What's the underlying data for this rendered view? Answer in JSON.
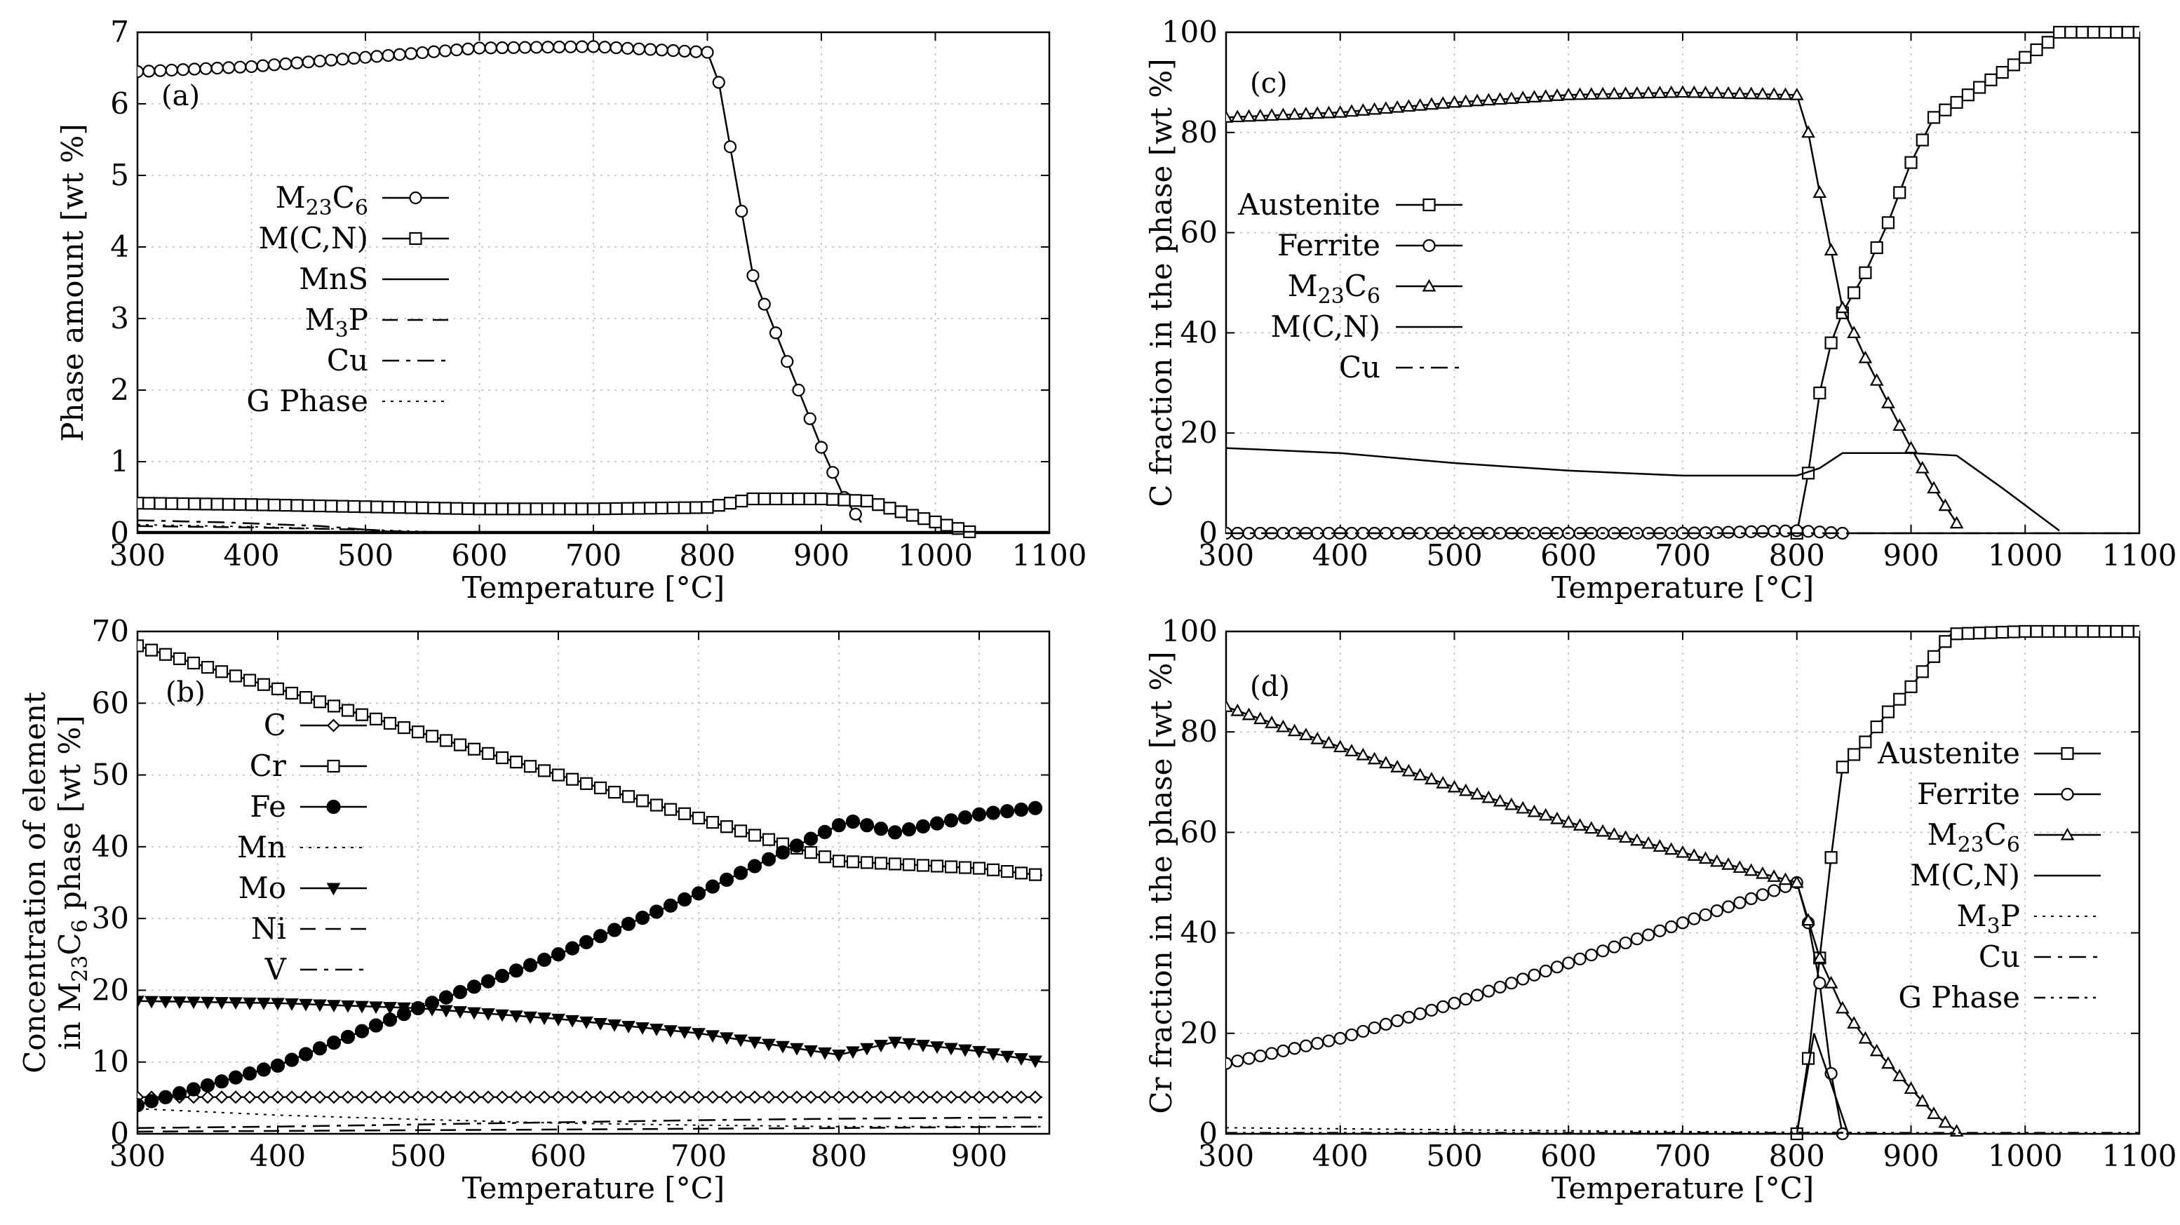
{
  "chart_data": [
    {
      "id": "a",
      "type": "line",
      "label": "(a)",
      "xlabel": "Temperature [°C]",
      "ylabel": "Phase amount [wt %]",
      "xlim": [
        300,
        1100
      ],
      "ylim": [
        0,
        7
      ],
      "xticks": [
        300,
        400,
        500,
        600,
        700,
        800,
        900,
        1000,
        1100
      ],
      "yticks": [
        0,
        1,
        2,
        3,
        4,
        5,
        6,
        7
      ],
      "grid": true,
      "legend_position": "left",
      "series": [
        {
          "name": "M23C6",
          "label_main": "M",
          "label_sub1": "23",
          "label_mid": "C",
          "label_sub2": "6",
          "style": "solid",
          "marker": "circle",
          "marker_step": 10,
          "x": [
            300,
            400,
            500,
            600,
            700,
            800,
            810,
            820,
            830,
            840,
            860,
            880,
            900,
            920,
            935
          ],
          "y": [
            6.45,
            6.52,
            6.65,
            6.78,
            6.8,
            6.72,
            6.3,
            5.4,
            4.5,
            3.6,
            2.8,
            2.0,
            1.2,
            0.5,
            0.15
          ]
        },
        {
          "name": "M(C,N)",
          "style": "solid",
          "marker": "square",
          "marker_step": 10,
          "x": [
            300,
            400,
            500,
            600,
            700,
            800,
            820,
            840,
            900,
            940,
            980,
            1030
          ],
          "y": [
            0.42,
            0.4,
            0.37,
            0.34,
            0.34,
            0.36,
            0.42,
            0.48,
            0.48,
            0.45,
            0.25,
            0.02
          ]
        },
        {
          "name": "MnS",
          "style": "solid",
          "marker": "none",
          "x": [
            300,
            400,
            500,
            600,
            700,
            800,
            900,
            1100
          ],
          "y": [
            0.02,
            0.02,
            0.02,
            0.02,
            0.02,
            0.02,
            0.02,
            0.02
          ]
        },
        {
          "name": "M3P",
          "label_main": "M",
          "label_sub1": "3",
          "label_mid": "P",
          "style": "dashed",
          "marker": "none",
          "x": [
            300,
            400,
            500,
            560
          ],
          "y": [
            0.1,
            0.08,
            0.05,
            0.0
          ]
        },
        {
          "name": "Cu",
          "style": "dashdot",
          "marker": "none",
          "x": [
            300,
            380,
            460,
            540
          ],
          "y": [
            0.18,
            0.15,
            0.1,
            0.0
          ]
        },
        {
          "name": "G Phase",
          "style": "dotted",
          "marker": "none",
          "x": [
            300,
            400,
            500,
            600
          ],
          "y": [
            0.12,
            0.09,
            0.05,
            0.0
          ]
        }
      ]
    },
    {
      "id": "b",
      "type": "line",
      "label": "(b)",
      "xlabel": "Temperature [°C]",
      "ylabel_line1": "Concentration of element",
      "ylabel_line2_pre": "in M",
      "ylabel_line2_sub1": "23",
      "ylabel_line2_mid": "C",
      "ylabel_line2_sub2": "6",
      "ylabel_line2_post": " phase [wt %]",
      "xlim": [
        300,
        950
      ],
      "ylim": [
        0,
        70
      ],
      "xticks": [
        300,
        400,
        500,
        600,
        700,
        800,
        900
      ],
      "yticks": [
        0,
        10,
        20,
        30,
        40,
        50,
        60,
        70
      ],
      "grid": true,
      "legend_position": "left",
      "series": [
        {
          "name": "C",
          "style": "solid",
          "marker": "diamond",
          "marker_step": 10,
          "x": [
            300,
            400,
            500,
            600,
            700,
            800,
            900,
            945
          ],
          "y": [
            5.1,
            5.1,
            5.1,
            5.1,
            5.1,
            5.1,
            5.1,
            5.1
          ]
        },
        {
          "name": "Cr",
          "style": "solid",
          "marker": "square",
          "marker_step": 10,
          "x": [
            300,
            400,
            500,
            600,
            700,
            800,
            850,
            900,
            945
          ],
          "y": [
            68,
            62,
            56,
            50,
            44,
            38,
            37.5,
            37,
            36
          ]
        },
        {
          "name": "Fe",
          "style": "solid",
          "marker": "filled-circle",
          "marker_step": 10,
          "x": [
            300,
            400,
            500,
            600,
            700,
            800,
            810,
            840,
            900,
            945
          ],
          "y": [
            4,
            9.5,
            17.5,
            25,
            33.5,
            43,
            43.5,
            42,
            44.5,
            45.5
          ]
        },
        {
          "name": "Mn",
          "style": "dotted",
          "marker": "none",
          "x": [
            300,
            400,
            500,
            600,
            700,
            800,
            945
          ],
          "y": [
            3.5,
            2.6,
            2.0,
            1.5,
            1.2,
            1.0,
            1.0
          ]
        },
        {
          "name": "Mo",
          "style": "solid",
          "marker": "filled-triangle-down",
          "marker_step": 10,
          "x": [
            300,
            400,
            500,
            600,
            700,
            800,
            840,
            900,
            945
          ],
          "y": [
            18.5,
            18.2,
            17.5,
            16,
            14,
            11,
            12.8,
            11.5,
            10
          ]
        },
        {
          "name": "Ni",
          "style": "dashed",
          "marker": "none",
          "x": [
            300,
            400,
            500,
            600,
            700,
            800,
            945
          ],
          "y": [
            0.3,
            0.4,
            0.5,
            0.6,
            0.7,
            0.8,
            1.0
          ]
        },
        {
          "name": "V",
          "style": "dashdot",
          "marker": "none",
          "x": [
            300,
            400,
            500,
            600,
            700,
            800,
            945
          ],
          "y": [
            0.8,
            1.0,
            1.3,
            1.6,
            1.9,
            2.1,
            2.3
          ]
        }
      ]
    },
    {
      "id": "c",
      "type": "line",
      "label": "(c)",
      "xlabel": "Temperature [°C]",
      "ylabel": "C fraction in the phase [wt %]",
      "xlim": [
        300,
        1100
      ],
      "ylim": [
        0,
        100
      ],
      "xticks": [
        300,
        400,
        500,
        600,
        700,
        800,
        900,
        1000,
        1100
      ],
      "yticks": [
        0,
        20,
        40,
        60,
        80,
        100
      ],
      "grid": true,
      "legend_position": "left",
      "series": [
        {
          "name": "Austenite",
          "style": "solid",
          "marker": "square",
          "marker_step": 10,
          "x": [
            800,
            810,
            820,
            830,
            840,
            860,
            880,
            900,
            920,
            940,
            960,
            980,
            1000,
            1020,
            1030,
            1100
          ],
          "y": [
            0,
            12,
            28,
            38,
            44,
            52,
            62,
            74,
            83,
            86,
            89,
            92,
            95,
            98,
            100,
            100
          ]
        },
        {
          "name": "Ferrite",
          "style": "solid",
          "marker": "circle",
          "marker_step": 10,
          "x": [
            300,
            400,
            500,
            600,
            700,
            800,
            840
          ],
          "y": [
            0,
            0,
            0,
            0,
            0,
            0.5,
            0
          ]
        },
        {
          "name": "M23C6",
          "label_main": "M",
          "label_sub1": "23",
          "label_mid": "C",
          "label_sub2": "6",
          "style": "solid",
          "marker": "triangle",
          "marker_step": 10,
          "x": [
            300,
            400,
            500,
            600,
            700,
            800,
            810,
            820,
            840,
            860,
            880,
            900,
            920,
            940
          ],
          "y": [
            83,
            84,
            86,
            87.5,
            88,
            87.5,
            80,
            68,
            45,
            35,
            26,
            17,
            9,
            2
          ]
        },
        {
          "name": "M(C,N)",
          "style": "solid",
          "marker": "none",
          "x": [
            300,
            400,
            500,
            600,
            700,
            800,
            820,
            840,
            900,
            940,
            980,
            1030
          ],
          "y": [
            17,
            16,
            14,
            12.5,
            11.5,
            11.5,
            13,
            16,
            16,
            15.5,
            9,
            0.5
          ]
        },
        {
          "name": "Cu",
          "style": "dashdot",
          "marker": "none",
          "x": [
            300,
            1100
          ],
          "y": [
            0,
            0
          ]
        }
      ]
    },
    {
      "id": "d",
      "type": "line",
      "label": "(d)",
      "xlabel": "Temperature [°C]",
      "ylabel": "Cr fraction in the phase [wt %]",
      "xlim": [
        300,
        1100
      ],
      "ylim": [
        0,
        100
      ],
      "xticks": [
        300,
        400,
        500,
        600,
        700,
        800,
        900,
        1000,
        1100
      ],
      "yticks": [
        0,
        20,
        40,
        60,
        80,
        100
      ],
      "grid": true,
      "legend_position": "right",
      "series": [
        {
          "name": "Austenite",
          "style": "solid",
          "marker": "square",
          "marker_step": 10,
          "x": [
            800,
            810,
            820,
            830,
            840,
            860,
            880,
            900,
            920,
            935,
            1000,
            1100
          ],
          "y": [
            0,
            15,
            35,
            55,
            73,
            78,
            84,
            89,
            95,
            99.5,
            100,
            100
          ]
        },
        {
          "name": "Ferrite",
          "style": "solid",
          "marker": "circle",
          "marker_step": 10,
          "x": [
            300,
            400,
            500,
            600,
            700,
            800,
            810,
            820,
            830,
            840
          ],
          "y": [
            14,
            19,
            26,
            34,
            42,
            50,
            42,
            30,
            12,
            0
          ]
        },
        {
          "name": "M23C6",
          "label_main": "M",
          "label_sub1": "23",
          "label_mid": "C",
          "label_sub2": "6",
          "style": "solid",
          "marker": "triangle",
          "marker_step": 10,
          "x": [
            300,
            400,
            500,
            600,
            700,
            800,
            820,
            840,
            860,
            880,
            900,
            920,
            940
          ],
          "y": [
            85,
            77,
            69,
            62,
            56,
            50,
            35,
            25,
            19,
            14,
            9,
            4,
            0.5
          ]
        },
        {
          "name": "M(C,N)",
          "style": "solid",
          "marker": "none",
          "x": [
            800,
            815,
            830,
            845
          ],
          "y": [
            0,
            20,
            10,
            0
          ]
        },
        {
          "name": "M3P",
          "label_main": "M",
          "label_sub1": "3",
          "label_mid": "P",
          "style": "dotted",
          "marker": "none",
          "x": [
            300,
            600,
            800,
            1030
          ],
          "y": [
            1.2,
            0.6,
            0.3,
            0.1
          ]
        },
        {
          "name": "Cu",
          "style": "dashdot",
          "marker": "none",
          "x": [
            300,
            1100
          ],
          "y": [
            0,
            0
          ]
        },
        {
          "name": "G Phase",
          "style": "dashdot2",
          "marker": "none",
          "x": [
            300,
            1100
          ],
          "y": [
            0.2,
            0.2
          ]
        }
      ]
    }
  ]
}
